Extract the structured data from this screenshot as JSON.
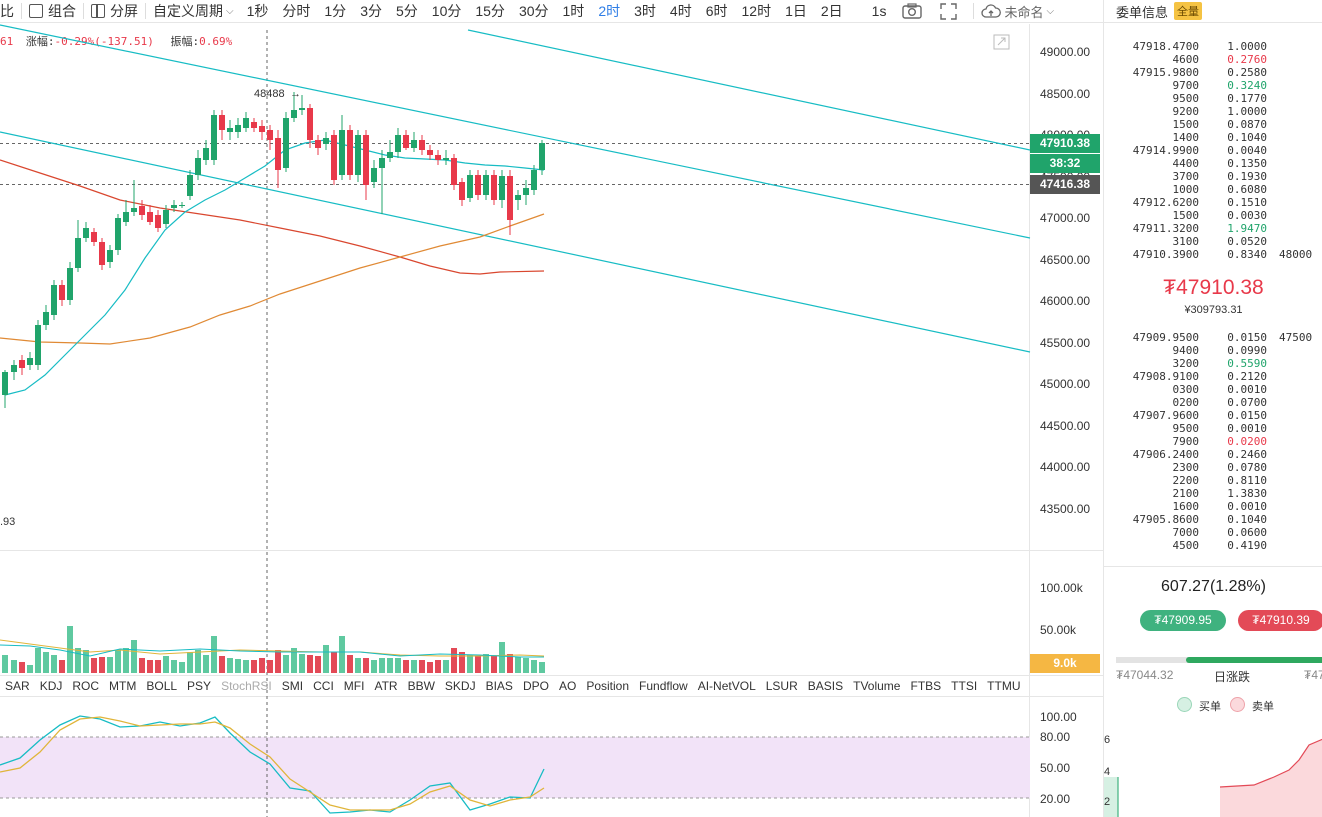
{
  "toolbar": {
    "items": [
      {
        "label": "比",
        "icon": "none"
      },
      {
        "label": "组合",
        "icon": "layout-icon"
      },
      {
        "label": "分屏",
        "icon": "split-screen-icon"
      }
    ],
    "custom_period": "自定义周期",
    "periods": [
      "1秒",
      "分时",
      "1分",
      "3分",
      "5分",
      "10分",
      "15分",
      "30分",
      "1时",
      "2时",
      "3时",
      "4时",
      "6时",
      "12时",
      "1日",
      "2日"
    ],
    "active_period": "2时",
    "interval": "1s",
    "save_label": "未命名"
  },
  "info": {
    "prefix": "61",
    "change_label": "涨幅:",
    "change_value": "-0.29%(-137.51)",
    "amp_label": "振幅:",
    "amp_value": "0.69%"
  },
  "price_axis": [
    "49000.00",
    "48500.00",
    "48000.00",
    "47500.00",
    "47000.00",
    "46500.00",
    "46000.00",
    "45500.00",
    "45000.00",
    "44500.00",
    "44000.00",
    "43500.00"
  ],
  "tags": {
    "last_price": "47910.38",
    "countdown": "38:32",
    "cursor_price": "47416.38"
  },
  "peak_label": "48488",
  "low_label": ".93",
  "volume_axis": [
    "100.00k",
    "50.00k"
  ],
  "volume_tag": "9.0k",
  "osc_axis": [
    "100.00",
    "80.00",
    "50.00",
    "20.00"
  ],
  "indicator_tabs": [
    "SAR",
    "KDJ",
    "ROC",
    "MTM",
    "BOLL",
    "PSY",
    "StochRSI",
    "SMI",
    "CCI",
    "MFI",
    "ATR",
    "BBW",
    "SKDJ",
    "BIAS",
    "DPO",
    "AO",
    "Position",
    "Fundflow",
    "AI-NetVOL",
    "LSUR",
    "BASIS",
    "TVolume",
    "FTBS",
    "TTSI",
    "TTMU"
  ],
  "order_book": {
    "title": "委单信息",
    "badge": "全量",
    "asks": [
      {
        "price": "47918.4700",
        "qty": "1.0000",
        "color": ""
      },
      {
        "price": "4600",
        "qty": "0.2760",
        "color": "red"
      },
      {
        "price": "47915.9800",
        "qty": "0.2580",
        "color": ""
      },
      {
        "price": "9700",
        "qty": "0.3240",
        "color": "green"
      },
      {
        "price": "9500",
        "qty": "0.1770",
        "color": ""
      },
      {
        "price": "9200",
        "qty": "1.0000",
        "color": ""
      },
      {
        "price": "1500",
        "qty": "0.0870",
        "color": ""
      },
      {
        "price": "1400",
        "qty": "0.1040",
        "color": ""
      },
      {
        "price": "47914.9900",
        "qty": "0.0040",
        "color": ""
      },
      {
        "price": "4400",
        "qty": "0.1350",
        "color": ""
      },
      {
        "price": "3700",
        "qty": "0.1930",
        "color": ""
      },
      {
        "price": "1000",
        "qty": "0.6080",
        "color": ""
      },
      {
        "price": "47912.6200",
        "qty": "0.1510",
        "color": ""
      },
      {
        "price": "1500",
        "qty": "0.0030",
        "color": ""
      },
      {
        "price": "47911.3200",
        "qty": "1.9470",
        "color": "green"
      },
      {
        "price": "3100",
        "qty": "0.0520",
        "color": ""
      },
      {
        "price": "47910.3900",
        "qty": "0.8340",
        "color": ""
      }
    ],
    "ask_annotation": "48000",
    "last_price": "₮47910.38",
    "last_price_cny": "¥309793.31",
    "bids": [
      {
        "price": "47909.9500",
        "qty": "0.0150",
        "color": ""
      },
      {
        "price": "9400",
        "qty": "0.0990",
        "color": ""
      },
      {
        "price": "3200",
        "qty": "0.5590",
        "color": "green"
      },
      {
        "price": "47908.9100",
        "qty": "0.2120",
        "color": ""
      },
      {
        "price": "0300",
        "qty": "0.0010",
        "color": ""
      },
      {
        "price": "0200",
        "qty": "0.0700",
        "color": ""
      },
      {
        "price": "47907.9600",
        "qty": "0.0150",
        "color": ""
      },
      {
        "price": "9500",
        "qty": "0.0010",
        "color": ""
      },
      {
        "price": "7900",
        "qty": "0.0200",
        "color": "red"
      },
      {
        "price": "47906.2400",
        "qty": "0.2460",
        "color": ""
      },
      {
        "price": "2300",
        "qty": "0.0780",
        "color": ""
      },
      {
        "price": "2200",
        "qty": "0.8110",
        "color": ""
      },
      {
        "price": "2100",
        "qty": "1.3830",
        "color": ""
      },
      {
        "price": "1600",
        "qty": "0.0010",
        "color": ""
      },
      {
        "price": "47905.8600",
        "qty": "0.1040",
        "color": ""
      },
      {
        "price": "7000",
        "qty": "0.0600",
        "color": ""
      },
      {
        "price": "4500",
        "qty": "0.4190",
        "color": ""
      }
    ],
    "bid_annotation": "47500",
    "day_change": "607.27(1.28%)",
    "best_bid": "₮47909.95",
    "best_ask": "₮47910.39",
    "day_low": "₮47044.32",
    "day_range_label": "日涨跌",
    "day_high": "₮47",
    "buy_label": "买单",
    "sell_label": "卖单",
    "depth_axis": [
      "6",
      "4",
      "2"
    ]
  },
  "colors": {
    "up": "#20a46b",
    "down": "#e8394a",
    "channel": "#17bcc4",
    "accent": "#2f7ee6"
  }
}
